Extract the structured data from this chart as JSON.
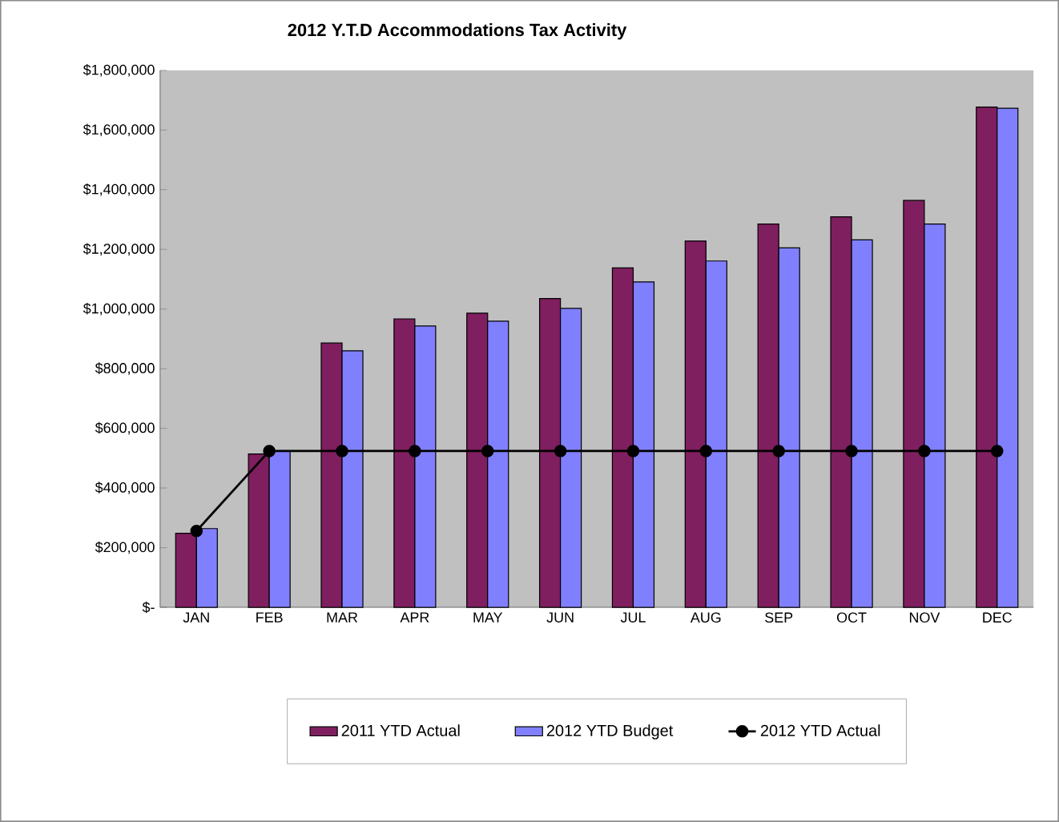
{
  "chart_data": {
    "type": "bar",
    "title": "2012 Y.T.D Accommodations Tax Activity",
    "categories": [
      "JAN",
      "FEB",
      "MAR",
      "APR",
      "MAY",
      "JUN",
      "JUL",
      "AUG",
      "SEP",
      "OCT",
      "NOV",
      "DEC"
    ],
    "series": [
      {
        "name": "2011 YTD Actual",
        "color": "#7f1f5f",
        "values": [
          248000,
          514000,
          886000,
          967000,
          986000,
          1035000,
          1138000,
          1228000,
          1285000,
          1309000,
          1364000,
          1677000
        ]
      },
      {
        "name": "2012 YTD Budget",
        "color": "#8080ff",
        "values": [
          264000,
          524000,
          860000,
          943000,
          959000,
          1002000,
          1091000,
          1161000,
          1205000,
          1232000,
          1285000,
          1673000
        ]
      },
      {
        "name": "2012 YTD Actual",
        "type": "line",
        "color": "#000000",
        "marker": "circle",
        "values": [
          256000,
          524000,
          524000,
          524000,
          524000,
          524000,
          524000,
          524000,
          524000,
          524000,
          524000,
          524000
        ]
      }
    ],
    "ylim": [
      0,
      1800000
    ],
    "yticks": [
      {
        "value": 0,
        "label": "$-"
      },
      {
        "value": 200000,
        "label": "$200,000"
      },
      {
        "value": 400000,
        "label": "$400,000"
      },
      {
        "value": 600000,
        "label": "$600,000"
      },
      {
        "value": 800000,
        "label": "$800,000"
      },
      {
        "value": 1000000,
        "label": "$1,000,000"
      },
      {
        "value": 1200000,
        "label": "$1,200,000"
      },
      {
        "value": 1400000,
        "label": "$1,400,000"
      },
      {
        "value": 1600000,
        "label": "$1,600,000"
      },
      {
        "value": 1800000,
        "label": "$1,800,000"
      }
    ],
    "legend": "bottom",
    "grid": false
  }
}
